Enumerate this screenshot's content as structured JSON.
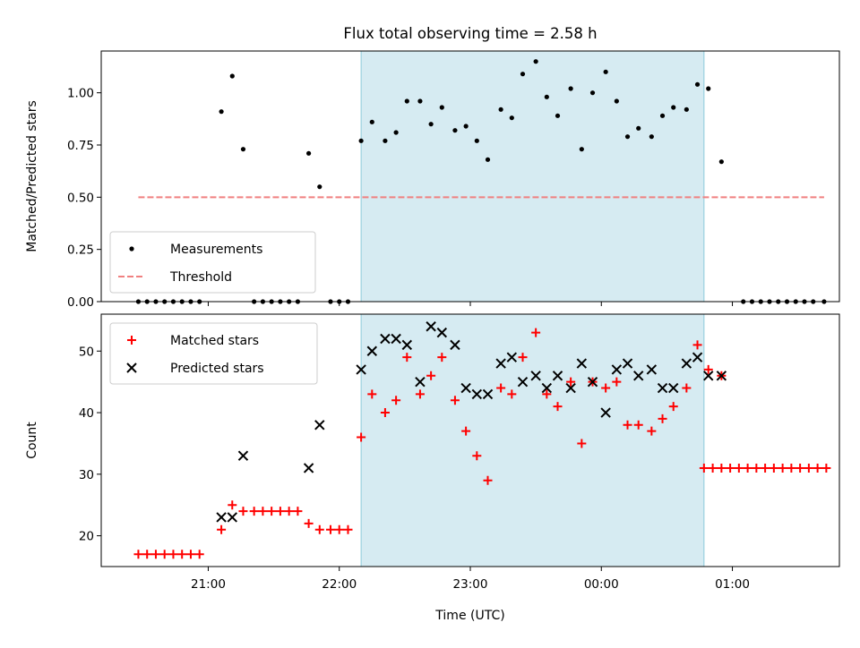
{
  "chart_data": [
    {
      "type": "scatter",
      "title": "Flux total observing time = 2.58 h",
      "xlabel": "",
      "ylabel": "Matched/Predicted stars",
      "ylim": [
        0,
        1.2
      ],
      "yticks": [
        "0.00",
        "0.25",
        "0.50",
        "0.75",
        "1.00"
      ],
      "xlim": [
        "20:11",
        "01:49"
      ],
      "xticks": [
        "21:00",
        "22:00",
        "23:00",
        "00:00",
        "01:00"
      ],
      "shaded_region": [
        "22:10",
        "00:47"
      ],
      "series": [
        {
          "name": "Measurements",
          "color": "#000000",
          "marker": "dot",
          "points": [
            [
              "20:28",
              0
            ],
            [
              "20:32",
              0
            ],
            [
              "20:36",
              0
            ],
            [
              "20:40",
              0
            ],
            [
              "20:44",
              0
            ],
            [
              "20:48",
              0
            ],
            [
              "20:52",
              0
            ],
            [
              "20:56",
              0
            ],
            [
              "21:06",
              0.91
            ],
            [
              "21:11",
              1.08
            ],
            [
              "21:16",
              0.73
            ],
            [
              "21:21",
              0
            ],
            [
              "21:25",
              0
            ],
            [
              "21:29",
              0
            ],
            [
              "21:33",
              0
            ],
            [
              "21:37",
              0
            ],
            [
              "21:41",
              0
            ],
            [
              "21:46",
              0.71
            ],
            [
              "21:51",
              0.55
            ],
            [
              "21:56",
              0
            ],
            [
              "22:00",
              0
            ],
            [
              "22:04",
              0
            ],
            [
              "22:10",
              0.77
            ],
            [
              "22:15",
              0.86
            ],
            [
              "22:21",
              0.77
            ],
            [
              "22:26",
              0.81
            ],
            [
              "22:31",
              0.96
            ],
            [
              "22:37",
              0.96
            ],
            [
              "22:42",
              0.85
            ],
            [
              "22:47",
              0.93
            ],
            [
              "22:53",
              0.82
            ],
            [
              "22:58",
              0.84
            ],
            [
              "23:03",
              0.77
            ],
            [
              "23:08",
              0.68
            ],
            [
              "23:14",
              0.92
            ],
            [
              "23:19",
              0.88
            ],
            [
              "23:24",
              1.09
            ],
            [
              "23:30",
              1.15
            ],
            [
              "23:35",
              0.98
            ],
            [
              "23:40",
              0.89
            ],
            [
              "23:46",
              1.02
            ],
            [
              "23:51",
              0.73
            ],
            [
              "23:56",
              1.0
            ],
            [
              "00:02",
              1.1
            ],
            [
              "00:07",
              0.96
            ],
            [
              "00:12",
              0.79
            ],
            [
              "00:17",
              0.83
            ],
            [
              "00:23",
              0.79
            ],
            [
              "00:28",
              0.89
            ],
            [
              "00:33",
              0.93
            ],
            [
              "00:39",
              0.92
            ],
            [
              "00:44",
              1.04
            ],
            [
              "00:49",
              1.02
            ],
            [
              "00:55",
              0.67
            ],
            [
              "01:05",
              0
            ],
            [
              "01:09",
              0
            ],
            [
              "01:13",
              0
            ],
            [
              "01:17",
              0
            ],
            [
              "01:21",
              0
            ],
            [
              "01:25",
              0
            ],
            [
              "01:29",
              0
            ],
            [
              "01:33",
              0
            ],
            [
              "01:37",
              0
            ],
            [
              "01:42",
              0
            ]
          ]
        },
        {
          "name": "Threshold",
          "color": "#f08080",
          "style": "dashed",
          "points": [
            [
              "20:28",
              0.5
            ],
            [
              "01:42",
              0.5
            ]
          ]
        }
      ],
      "legend_position": "lower-left"
    },
    {
      "type": "scatter",
      "title": "",
      "xlabel": "Time (UTC)",
      "ylabel": "Count",
      "ylim": [
        15,
        56
      ],
      "yticks": [
        "20",
        "30",
        "40",
        "50"
      ],
      "xlim": [
        "20:11",
        "01:49"
      ],
      "xticks": [
        "21:00",
        "22:00",
        "23:00",
        "00:00",
        "01:00"
      ],
      "shaded_region": [
        "22:10",
        "00:47"
      ],
      "series": [
        {
          "name": "Matched stars",
          "color": "#ff0000",
          "marker": "plus",
          "points": [
            [
              "20:28",
              17
            ],
            [
              "20:32",
              17
            ],
            [
              "20:36",
              17
            ],
            [
              "20:40",
              17
            ],
            [
              "20:44",
              17
            ],
            [
              "20:48",
              17
            ],
            [
              "20:52",
              17
            ],
            [
              "20:56",
              17
            ],
            [
              "21:06",
              21
            ],
            [
              "21:11",
              25
            ],
            [
              "21:16",
              24
            ],
            [
              "21:21",
              24
            ],
            [
              "21:25",
              24
            ],
            [
              "21:29",
              24
            ],
            [
              "21:33",
              24
            ],
            [
              "21:37",
              24
            ],
            [
              "21:41",
              24
            ],
            [
              "21:46",
              22
            ],
            [
              "21:51",
              21
            ],
            [
              "21:56",
              21
            ],
            [
              "22:00",
              21
            ],
            [
              "22:04",
              21
            ],
            [
              "22:10",
              36
            ],
            [
              "22:15",
              43
            ],
            [
              "22:21",
              40
            ],
            [
              "22:26",
              42
            ],
            [
              "22:31",
              49
            ],
            [
              "22:37",
              43
            ],
            [
              "22:42",
              46
            ],
            [
              "22:47",
              49
            ],
            [
              "22:53",
              42
            ],
            [
              "22:58",
              37
            ],
            [
              "23:03",
              33
            ],
            [
              "23:08",
              29
            ],
            [
              "23:14",
              44
            ],
            [
              "23:19",
              43
            ],
            [
              "23:24",
              49
            ],
            [
              "23:30",
              53
            ],
            [
              "23:35",
              43
            ],
            [
              "23:40",
              41
            ],
            [
              "23:46",
              45
            ],
            [
              "23:51",
              35
            ],
            [
              "23:56",
              45
            ],
            [
              "00:02",
              44
            ],
            [
              "00:07",
              45
            ],
            [
              "00:12",
              38
            ],
            [
              "00:17",
              38
            ],
            [
              "00:23",
              37
            ],
            [
              "00:28",
              39
            ],
            [
              "00:33",
              41
            ],
            [
              "00:39",
              44
            ],
            [
              "00:44",
              51
            ],
            [
              "00:49",
              47
            ],
            [
              "00:55",
              46
            ],
            [
              "00:47",
              31
            ],
            [
              "00:51",
              31
            ],
            [
              "00:55",
              31
            ],
            [
              "00:59",
              31
            ],
            [
              "01:03",
              31
            ],
            [
              "01:07",
              31
            ],
            [
              "01:11",
              31
            ],
            [
              "01:15",
              31
            ],
            [
              "01:19",
              31
            ],
            [
              "01:23",
              31
            ],
            [
              "01:27",
              31
            ],
            [
              "01:31",
              31
            ],
            [
              "01:35",
              31
            ],
            [
              "01:39",
              31
            ],
            [
              "01:43",
              31
            ]
          ]
        },
        {
          "name": "Predicted stars",
          "color": "#000000",
          "marker": "x",
          "points": [
            [
              "21:06",
              23
            ],
            [
              "21:11",
              23
            ],
            [
              "21:16",
              33
            ],
            [
              "21:46",
              31
            ],
            [
              "21:51",
              38
            ],
            [
              "22:10",
              47
            ],
            [
              "22:15",
              50
            ],
            [
              "22:21",
              52
            ],
            [
              "22:26",
              52
            ],
            [
              "22:31",
              51
            ],
            [
              "22:37",
              45
            ],
            [
              "22:42",
              54
            ],
            [
              "22:47",
              53
            ],
            [
              "22:53",
              51
            ],
            [
              "22:58",
              44
            ],
            [
              "23:03",
              43
            ],
            [
              "23:08",
              43
            ],
            [
              "23:14",
              48
            ],
            [
              "23:19",
              49
            ],
            [
              "23:24",
              45
            ],
            [
              "23:30",
              46
            ],
            [
              "23:35",
              44
            ],
            [
              "23:40",
              46
            ],
            [
              "23:46",
              44
            ],
            [
              "23:51",
              48
            ],
            [
              "23:56",
              45
            ],
            [
              "00:02",
              40
            ],
            [
              "00:07",
              47
            ],
            [
              "00:12",
              48
            ],
            [
              "00:17",
              46
            ],
            [
              "00:23",
              47
            ],
            [
              "00:28",
              44
            ],
            [
              "00:33",
              44
            ],
            [
              "00:39",
              48
            ],
            [
              "00:44",
              49
            ],
            [
              "00:49",
              46
            ],
            [
              "00:55",
              46
            ]
          ]
        }
      ],
      "legend_position": "upper-left"
    }
  ]
}
